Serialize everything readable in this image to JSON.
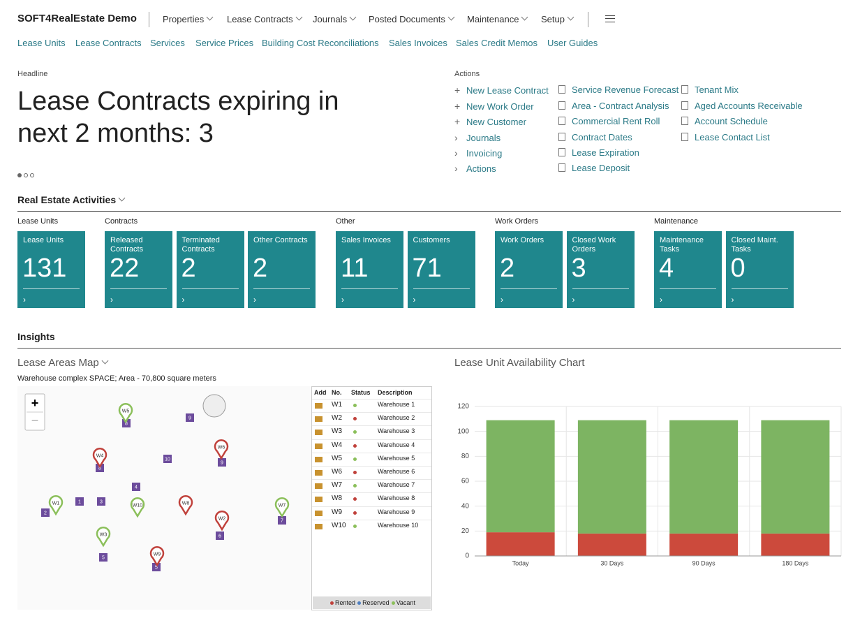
{
  "app_title": "SOFT4RealEstate Demo",
  "menu": [
    "Properties",
    "Lease Contracts",
    "Journals",
    "Posted Documents",
    "Maintenance",
    "Setup"
  ],
  "nav_links": [
    "Lease Units",
    "Lease Contracts",
    "Services",
    "Service Prices",
    "Building Cost Reconciliations",
    "Sales Invoices",
    "Sales Credit Memos",
    "User Guides"
  ],
  "headline": {
    "label": "Headline",
    "text": "Lease Contracts expiring in next 2 months: 3"
  },
  "actions": {
    "label": "Actions",
    "columns": [
      [
        "New Lease Contract",
        "New Work Order",
        "New Customer",
        "Journals",
        "Invoicing",
        "Actions"
      ],
      [
        "Service Revenue Forecast",
        "Area - Contract Analysis",
        "Commercial Rent Roll",
        "Contract Dates",
        "Lease Expiration",
        "Lease Deposit"
      ],
      [
        "Tenant Mix",
        "Aged Accounts Receivable",
        "Account Schedule",
        "Lease Contact List"
      ]
    ]
  },
  "activities": {
    "title": "Real Estate Activities",
    "groups": [
      {
        "label": "Lease Units",
        "tiles": [
          {
            "label": "Lease Units",
            "value": 131
          }
        ]
      },
      {
        "label": "Contracts",
        "tiles": [
          {
            "label": "Released Contracts",
            "value": 22
          },
          {
            "label": "Terminated Contracts",
            "value": 2
          },
          {
            "label": "Other Contracts",
            "value": 2
          }
        ]
      },
      {
        "label": "Other",
        "tiles": [
          {
            "label": "Sales Invoices",
            "value": 11
          },
          {
            "label": "Customers",
            "value": 71
          }
        ]
      },
      {
        "label": "Work Orders",
        "tiles": [
          {
            "label": "Work Orders",
            "value": 2
          },
          {
            "label": "Closed Work Orders",
            "value": 3
          }
        ]
      },
      {
        "label": "Maintenance",
        "tiles": [
          {
            "label": "Maintenance Tasks",
            "value": 4
          },
          {
            "label": "Closed Maint. Tasks",
            "value": 0
          }
        ]
      }
    ]
  },
  "insights": {
    "title": "Insights"
  },
  "map": {
    "title": "Lease Areas Map",
    "subtitle": "Warehouse complex SPACE; Area - 70,800 square meters",
    "areas": [
      "8",
      "9",
      "8",
      "10",
      "4",
      "1",
      "3",
      "2",
      "5",
      "6",
      "7",
      "9",
      "5"
    ],
    "table": {
      "headers": [
        "Add",
        "No.",
        "Status",
        "Description"
      ],
      "rows": [
        {
          "no": "W1",
          "color": "#8bbf5a",
          "description": "Warehouse 1"
        },
        {
          "no": "W2",
          "color": "#c0413b",
          "description": "Warehouse 2"
        },
        {
          "no": "W3",
          "color": "#8bbf5a",
          "description": "Warehouse 3"
        },
        {
          "no": "W4",
          "color": "#c0413b",
          "description": "Warehouse 4"
        },
        {
          "no": "W5",
          "color": "#8bbf5a",
          "description": "Warehouse 5"
        },
        {
          "no": "W6",
          "color": "#c0413b",
          "description": "Warehouse 6"
        },
        {
          "no": "W7",
          "color": "#8bbf5a",
          "description": "Warehouse 7"
        },
        {
          "no": "W8",
          "color": "#c0413b",
          "description": "Warehouse 8"
        },
        {
          "no": "W9",
          "color": "#c0413b",
          "description": "Warehouse 9"
        },
        {
          "no": "W10",
          "color": "#8bbf5a",
          "description": "Warehouse 10"
        }
      ],
      "legend": [
        {
          "label": "Rented",
          "color": "#c0413b"
        },
        {
          "label": "Reserved",
          "color": "#4f7fc0"
        },
        {
          "label": "Vacant",
          "color": "#8bbf5a"
        }
      ]
    }
  },
  "chart": {
    "type": "bar",
    "stacked": true,
    "grid": true,
    "title": "Lease Unit Availability Chart",
    "categories": [
      "Today",
      "30 Days",
      "90 Days",
      "180 Days"
    ],
    "series": [
      {
        "color": "#cc4a3c",
        "values": [
          19,
          18,
          18,
          18
        ]
      },
      {
        "color": "#7db462",
        "values": [
          90,
          91,
          91,
          91
        ]
      }
    ],
    "ylim": [
      0,
      120
    ],
    "yticks": [
      0,
      20,
      40,
      60,
      80,
      100,
      120
    ]
  }
}
